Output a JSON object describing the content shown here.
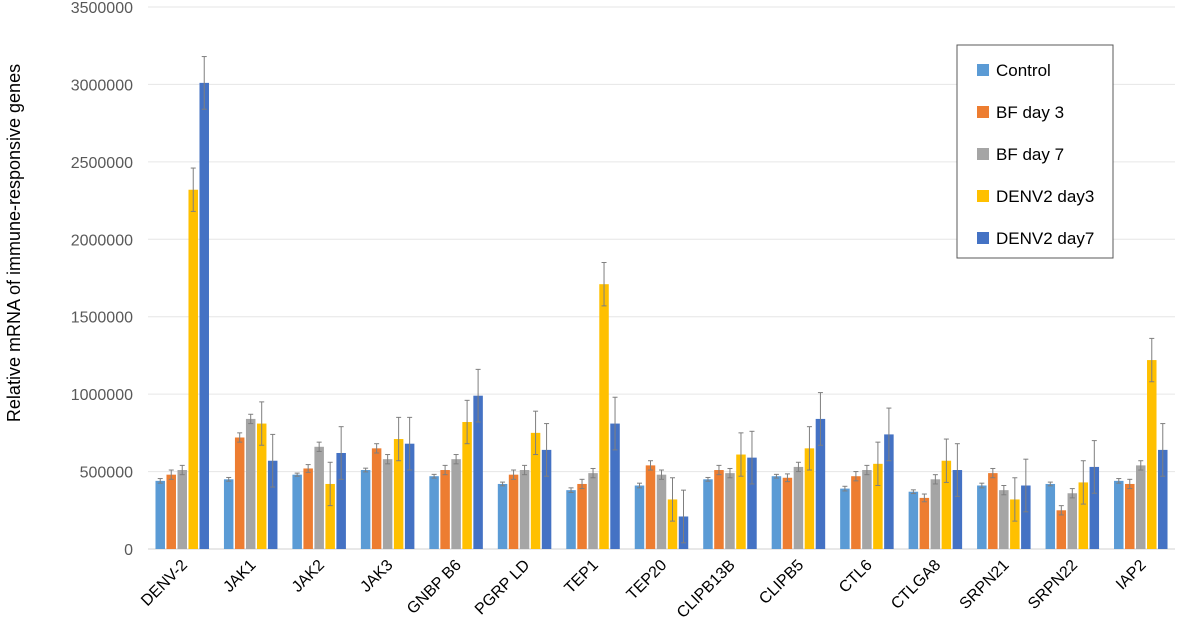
{
  "chart_data": {
    "type": "bar",
    "title": "",
    "xlabel": "",
    "ylabel": "Relative mRNA of immune-responsive genes",
    "ylim": [
      0,
      3500000
    ],
    "yticks": [
      0,
      500000,
      1000000,
      1500000,
      2000000,
      2500000,
      3000000,
      3500000
    ],
    "ytick_labels": [
      "0",
      "500000",
      "1000000",
      "1500000",
      "2000000",
      "2500000",
      "3000000",
      "3500000"
    ],
    "grid": true,
    "legend_position": "top-right",
    "categories": [
      "DENV-2",
      "JAK1",
      "JAK2",
      "JAK3",
      "GNBP B6",
      "PGRP LD",
      "TEP1",
      "TEP20",
      "CLIPB13B",
      "CLIPB5",
      "CTL6",
      "CTLGA8",
      "SRPN21",
      "SRPN22",
      "IAP2"
    ],
    "series": [
      {
        "name": "Control",
        "color": "#5B9BD5",
        "values": [
          440000,
          450000,
          480000,
          510000,
          470000,
          420000,
          380000,
          410000,
          450000,
          470000,
          390000,
          370000,
          410000,
          420000,
          440000
        ],
        "errors": [
          15000,
          12000,
          10000,
          12000,
          12000,
          12000,
          15000,
          15000,
          12000,
          12000,
          15000,
          12000,
          15000,
          12000,
          15000
        ]
      },
      {
        "name": "BF day 3",
        "color": "#ED7D31",
        "values": [
          480000,
          720000,
          520000,
          650000,
          510000,
          480000,
          420000,
          540000,
          510000,
          460000,
          470000,
          330000,
          490000,
          250000,
          420000
        ],
        "errors": [
          30000,
          30000,
          25000,
          30000,
          30000,
          30000,
          30000,
          30000,
          30000,
          25000,
          30000,
          25000,
          30000,
          30000,
          30000
        ]
      },
      {
        "name": "BF day 7",
        "color": "#A5A5A5",
        "values": [
          510000,
          840000,
          660000,
          580000,
          580000,
          510000,
          490000,
          480000,
          490000,
          530000,
          510000,
          450000,
          380000,
          360000,
          540000
        ],
        "errors": [
          30000,
          30000,
          30000,
          30000,
          30000,
          30000,
          30000,
          30000,
          30000,
          30000,
          30000,
          30000,
          30000,
          30000,
          30000
        ]
      },
      {
        "name": "DENV2 day3",
        "color": "#FFC000",
        "values": [
          2320000,
          810000,
          420000,
          710000,
          820000,
          750000,
          1710000,
          320000,
          610000,
          650000,
          550000,
          570000,
          320000,
          430000,
          1220000
        ],
        "errors": [
          140000,
          140000,
          140000,
          140000,
          140000,
          140000,
          140000,
          140000,
          140000,
          140000,
          140000,
          140000,
          140000,
          140000,
          140000
        ]
      },
      {
        "name": "DENV2 day7",
        "color": "#4472C4",
        "values": [
          3010000,
          570000,
          620000,
          680000,
          990000,
          640000,
          810000,
          210000,
          590000,
          840000,
          740000,
          510000,
          410000,
          530000,
          640000
        ],
        "errors": [
          170000,
          170000,
          170000,
          170000,
          170000,
          170000,
          170000,
          170000,
          170000,
          170000,
          170000,
          170000,
          170000,
          170000,
          170000
        ]
      }
    ]
  }
}
